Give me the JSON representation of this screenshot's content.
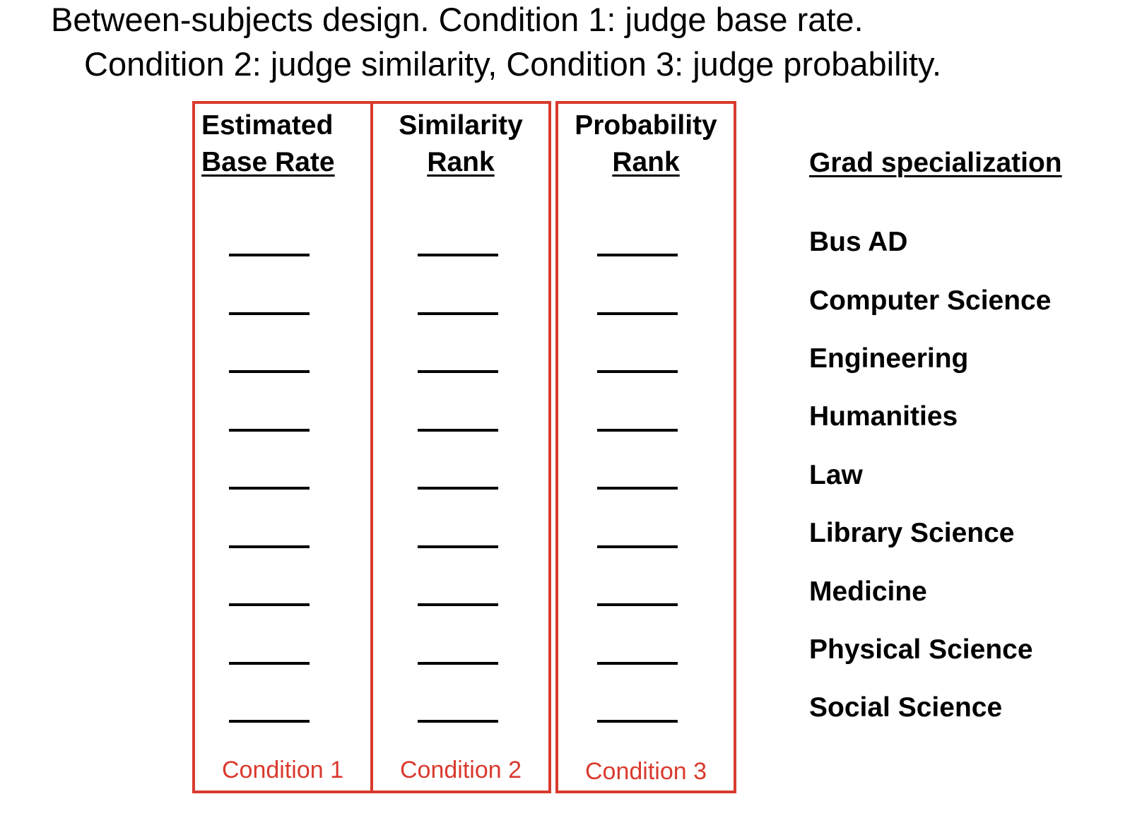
{
  "header": {
    "line1": "Between-subjects design.  Condition 1: judge base rate.",
    "line2": "Condition 2: judge similarity, Condition 3: judge probability."
  },
  "columns": [
    {
      "title_line1": "Estimated",
      "title_line2": "Base Rate",
      "condition_label": "Condition 1"
    },
    {
      "title_line1": "Similarity",
      "title_line2": "Rank",
      "condition_label": "Condition 2"
    },
    {
      "title_line1": "Probability",
      "title_line2": "Rank",
      "condition_label": "Condition 3"
    }
  ],
  "specialization": {
    "title": "Grad specialization",
    "items": [
      "Bus AD",
      "Computer Science",
      "Engineering",
      "Humanities",
      "Law",
      "Library Science",
      "Medicine",
      "Physical Science",
      "Social Science"
    ]
  },
  "colors": {
    "condition_accent": "#d93a2e",
    "text": "#000000"
  }
}
